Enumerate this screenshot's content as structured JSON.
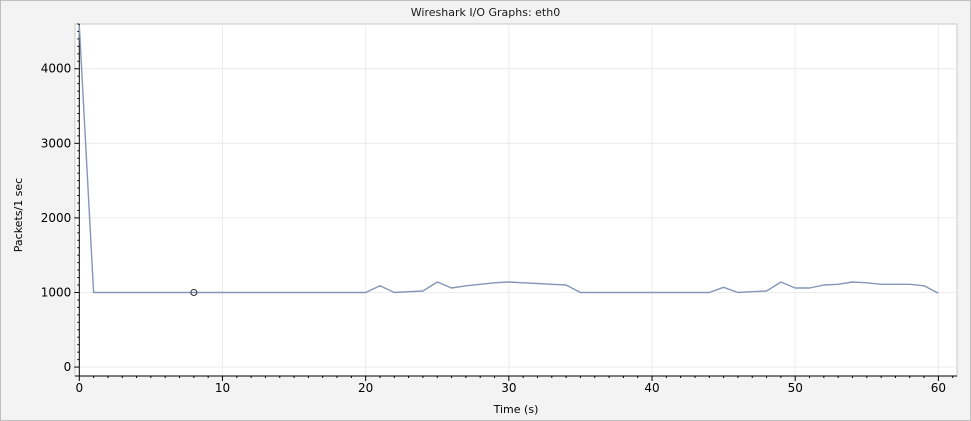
{
  "window": {
    "title": "Wireshark I/O Graphs: eth0"
  },
  "chart_data": {
    "type": "line",
    "title": "Wireshark I/O Graphs: eth0",
    "xlabel": "Time (s)",
    "ylabel": "Packets/1 sec",
    "xlim": [
      -0.3,
      61.3
    ],
    "ylim": [
      -120,
      4600
    ],
    "xticks": [
      0,
      10,
      20,
      30,
      40,
      50,
      60
    ],
    "yticks": [
      0,
      1000,
      2000,
      3000,
      4000
    ],
    "grid": true,
    "series": [
      {
        "color": "#8596b8",
        "x": [
          0,
          1,
          2,
          3,
          4,
          5,
          6,
          7,
          8,
          9,
          10,
          11,
          12,
          13,
          14,
          15,
          16,
          17,
          18,
          19,
          20,
          21,
          22,
          23,
          24,
          25,
          26,
          27,
          28,
          29,
          30,
          31,
          32,
          33,
          34,
          35,
          36,
          37,
          38,
          39,
          40,
          41,
          42,
          43,
          44,
          45,
          46,
          47,
          48,
          49,
          50,
          51,
          52,
          53,
          54,
          55,
          56,
          57,
          58,
          59,
          60
        ],
        "y": [
          4580,
          1000,
          1000,
          1000,
          1000,
          1000,
          1000,
          1000,
          1000,
          1000,
          1000,
          1000,
          1000,
          1000,
          1000,
          1000,
          1000,
          1000,
          1000,
          1000,
          1000,
          1090,
          1000,
          1010,
          1020,
          1140,
          1060,
          1090,
          1110,
          1130,
          1140,
          1130,
          1120,
          1110,
          1100,
          1000,
          1000,
          1000,
          1000,
          1000,
          1000,
          1000,
          1000,
          1000,
          1000,
          1070,
          1000,
          1010,
          1020,
          1140,
          1060,
          1060,
          1100,
          1110,
          1140,
          1130,
          1110,
          1110,
          1110,
          1090,
          990
        ]
      }
    ],
    "marker": {
      "x": 8,
      "y": 1000
    }
  }
}
